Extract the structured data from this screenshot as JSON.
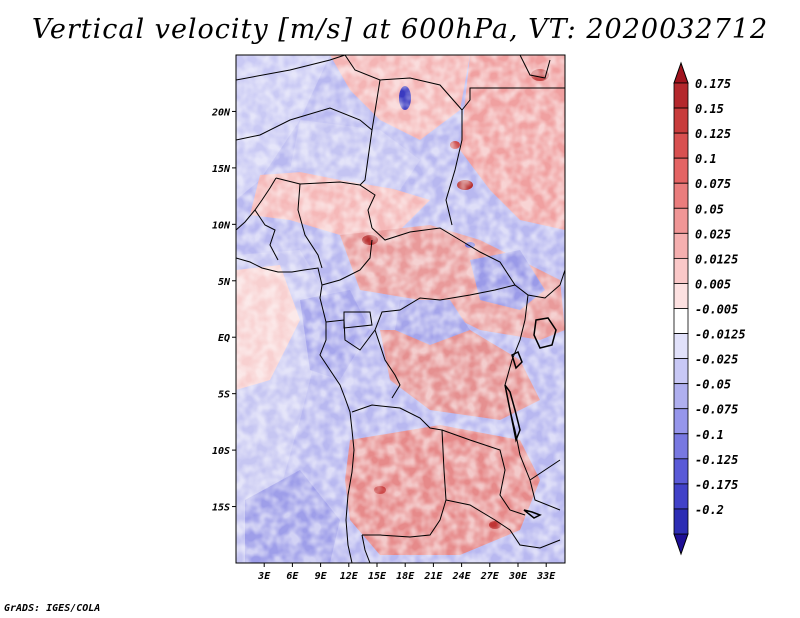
{
  "title": "Vertical velocity [m/s] at 600hPa, VT: 2020032712",
  "credit": "GrADS: IGES/COLA",
  "map": {
    "projection": "latlon",
    "lon_range": [
      0,
      35
    ],
    "lat_range": [
      -20,
      25
    ],
    "lon_ticks": [
      {
        "value": 3,
        "label": "3E"
      },
      {
        "value": 6,
        "label": "6E"
      },
      {
        "value": 9,
        "label": "9E"
      },
      {
        "value": 12,
        "label": "12E"
      },
      {
        "value": 15,
        "label": "15E"
      },
      {
        "value": 18,
        "label": "18E"
      },
      {
        "value": 21,
        "label": "21E"
      },
      {
        "value": 24,
        "label": "24E"
      },
      {
        "value": 27,
        "label": "27E"
      },
      {
        "value": 30,
        "label": "30E"
      },
      {
        "value": 33,
        "label": "33E"
      }
    ],
    "lat_ticks": [
      {
        "value": 20,
        "label": "20N"
      },
      {
        "value": 15,
        "label": "15N"
      },
      {
        "value": 10,
        "label": "10N"
      },
      {
        "value": 5,
        "label": "5N"
      },
      {
        "value": 0,
        "label": "EQ"
      },
      {
        "value": -5,
        "label": "5S"
      },
      {
        "value": -10,
        "label": "10S"
      },
      {
        "value": -15,
        "label": "15S"
      }
    ],
    "variable": "vertical velocity",
    "units": "m/s",
    "level": "600hPa",
    "valid_time": "2020032712"
  },
  "colorbar": {
    "extend": "both",
    "top_color": "#a0141e",
    "bottom_color": "#1e0f96",
    "bins": [
      {
        "label": "0.175",
        "color": "#b4282d"
      },
      {
        "label": "0.15",
        "color": "#c83c3c"
      },
      {
        "label": "0.125",
        "color": "#d85050"
      },
      {
        "label": "0.1",
        "color": "#e46464"
      },
      {
        "label": "0.075",
        "color": "#ea7d7d"
      },
      {
        "label": "0.05",
        "color": "#f09696"
      },
      {
        "label": "0.025",
        "color": "#f5afaf"
      },
      {
        "label": "0.0125",
        "color": "#fac8c8"
      },
      {
        "label": "0.005",
        "color": "#fde1e1"
      },
      {
        "label": "-0.005",
        "color": "#ffffff"
      },
      {
        "label": "-0.0125",
        "color": "#e1e1fa"
      },
      {
        "label": "-0.025",
        "color": "#c8c8f5"
      },
      {
        "label": "-0.05",
        "color": "#afafef"
      },
      {
        "label": "-0.075",
        "color": "#9696eb"
      },
      {
        "label": "-0.1",
        "color": "#7878e1"
      },
      {
        "label": "-0.125",
        "color": "#5a5ad7"
      },
      {
        "label": "-0.175",
        "color": "#4141c8"
      },
      {
        "label": "-0.2",
        "color": "#2d2db4"
      }
    ]
  }
}
